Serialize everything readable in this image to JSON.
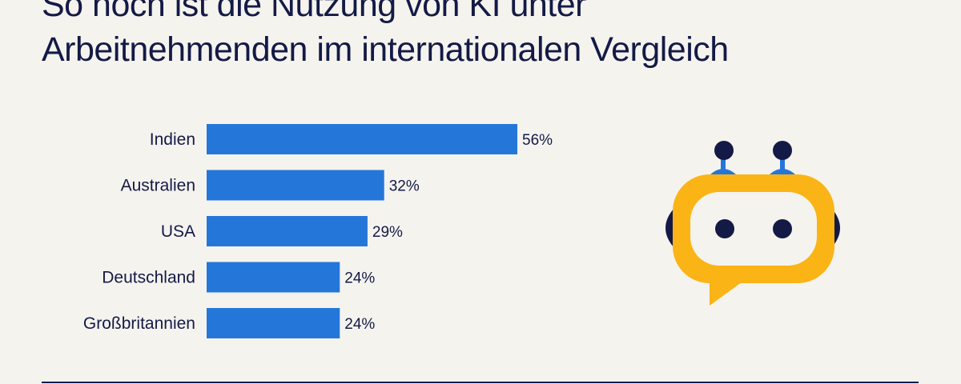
{
  "header": {
    "title_line1": "So hoch ist die Nutzung von KI unter",
    "title_line2": "Arbeitnehmenden im internationalen Vergleich"
  },
  "colors": {
    "background": "#f5f3ee",
    "bar": "#2477d9",
    "text": "#141a46",
    "robot_face": "#fbb416",
    "robot_dark": "#141a46",
    "robot_blue": "#2477d9"
  },
  "illustration": {
    "icon": "chatbot-robot-icon"
  },
  "chart_data": {
    "type": "bar",
    "orientation": "horizontal",
    "categories": [
      "Indien",
      "Australien",
      "USA",
      "Deutschland",
      "Großbritannien"
    ],
    "values": [
      56,
      32,
      29,
      24,
      24
    ],
    "value_labels": [
      "56%",
      "32%",
      "29%",
      "24%",
      "24%"
    ],
    "title": "",
    "xlabel": "",
    "ylabel": "",
    "xlim": [
      0,
      56
    ],
    "grid": false,
    "legend": "none"
  }
}
